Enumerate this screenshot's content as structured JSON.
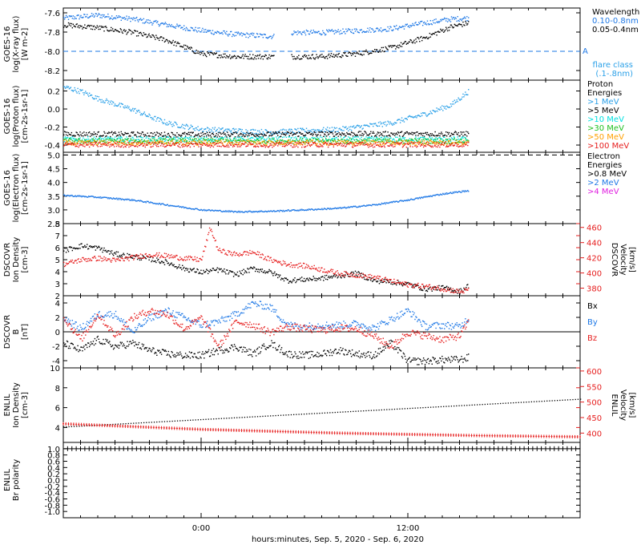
{
  "xaxis": {
    "tick_labels": [
      "0:00",
      "12:00"
    ],
    "caption": "hours:minutes, Sep.  5, 2020 - Sep.  6, 2020"
  },
  "colors": {
    "black": "#000000",
    "blue": "#1e78e6",
    "light_blue": "#2aa0e8",
    "cyan": "#00e0e0",
    "green": "#20c020",
    "orange": "#ffa000",
    "red": "#e61e1e",
    "magenta": "#e020e0"
  },
  "chart_data": [
    {
      "id": "xray",
      "type": "scatter",
      "ylabel": [
        "GOES-16",
        "log(X-ray flux)",
        "[W m-2]"
      ],
      "ylim": [
        -8.3,
        -7.55
      ],
      "yticks": [
        -8.2,
        -8.0,
        -7.8,
        -7.6
      ],
      "ytick_labels": [
        "-8.2",
        "-8.0",
        "-7.8",
        "-7.6"
      ],
      "reference_line": {
        "y": -8.0,
        "label": "A",
        "style": "dashed",
        "color": "blue"
      },
      "gap": [
        4.2,
        5.2
      ],
      "legend": {
        "title": "Wavelength",
        "items": [
          {
            "label": "0.10-0.8nm",
            "color": "blue"
          },
          {
            "label": "0.05-0.4nm",
            "color": "black"
          }
        ],
        "note": [
          "flare class",
          "(.1-.8nm)"
        ]
      },
      "series": [
        {
          "name": "0.10-0.8nm",
          "color": "blue",
          "x": [
            -8,
            -6,
            -4,
            -2,
            0,
            2,
            4.2,
            5.2,
            7,
            9,
            11,
            13,
            14.5,
            15.5
          ],
          "y": [
            -7.65,
            -7.62,
            -7.66,
            -7.72,
            -7.78,
            -7.82,
            -7.84,
            -7.8,
            -7.8,
            -7.78,
            -7.76,
            -7.7,
            -7.66,
            -7.65
          ]
        },
        {
          "name": "0.05-0.4nm",
          "color": "black",
          "x": [
            -8,
            -6,
            -4,
            -2,
            0,
            2,
            4.2,
            5.2,
            7,
            9,
            11,
            13,
            14.5,
            15.5
          ],
          "y": [
            -7.72,
            -7.75,
            -7.8,
            -7.88,
            -8.02,
            -8.05,
            -8.05,
            -8.05,
            -8.05,
            -8.02,
            -7.96,
            -7.85,
            -7.74,
            -7.7
          ]
        }
      ]
    },
    {
      "id": "proton",
      "type": "scatter",
      "ylabel": [
        "GOES-16",
        "log(Proton flux)",
        "[cm-2s-1sr-1]"
      ],
      "ylim": [
        -0.48,
        0.32
      ],
      "yticks": [
        -0.4,
        -0.2,
        0.0,
        0.2
      ],
      "ytick_labels": [
        "-0.4",
        "-0.2",
        "0.0",
        "0.2"
      ],
      "legend": {
        "title": [
          "Proton",
          "Energies"
        ],
        "items": [
          {
            "label": ">1 MeV",
            "color": "light_blue"
          },
          {
            "label": ">5 MeV",
            "color": "black"
          },
          {
            "label": ">10 MeV",
            "color": "cyan"
          },
          {
            "label": ">30 MeV",
            "color": "green"
          },
          {
            "label": ">50 MeV",
            "color": "orange"
          },
          {
            "label": ">100 MeV",
            "color": "red"
          }
        ]
      },
      "series": [
        {
          "name": ">1 MeV",
          "color": "light_blue",
          "x": [
            -8,
            -7,
            -6,
            -5,
            -4,
            -3,
            -2,
            0,
            4,
            8,
            11,
            13,
            14.5,
            15.5
          ],
          "y": [
            0.25,
            0.2,
            0.12,
            0.06,
            0.0,
            -0.08,
            -0.15,
            -0.22,
            -0.25,
            -0.22,
            -0.15,
            -0.05,
            0.05,
            0.2
          ]
        },
        {
          "name": ">5 MeV",
          "color": "black",
          "x": [
            -8,
            0,
            8,
            15.5
          ],
          "y": [
            -0.27,
            -0.28,
            -0.27,
            -0.27
          ]
        },
        {
          "name": ">10 MeV",
          "color": "cyan",
          "x": [
            -8,
            0,
            8,
            15.5
          ],
          "y": [
            -0.33,
            -0.33,
            -0.33,
            -0.33
          ]
        },
        {
          "name": ">30 MeV",
          "color": "green",
          "x": [
            -8,
            0,
            8,
            15.5
          ],
          "y": [
            -0.35,
            -0.35,
            -0.35,
            -0.35
          ]
        },
        {
          "name": ">50 MeV",
          "color": "orange",
          "x": [
            -8,
            0,
            8,
            15.5
          ],
          "y": [
            -0.37,
            -0.37,
            -0.37,
            -0.37
          ]
        },
        {
          "name": ">100 MeV",
          "color": "red",
          "x": [
            -8,
            0,
            8,
            15.5
          ],
          "y": [
            -0.39,
            -0.39,
            -0.39,
            -0.39
          ]
        }
      ]
    },
    {
      "id": "electron",
      "type": "scatter",
      "ylabel": [
        "GOES-16",
        "log(Electron flux)",
        "[cm-2s-1sr-1]"
      ],
      "ylim": [
        2.5,
        5.1
      ],
      "yticks": [
        2.5,
        3.0,
        3.5,
        4.0,
        4.5,
        5.0
      ],
      "ytick_labels": [
        "2.5",
        "3.0",
        "3.5",
        "4.0",
        "4.5",
        "5.0"
      ],
      "reference_line": {
        "y": 5.0,
        "style": "dashed",
        "color": "black"
      },
      "legend": {
        "title": [
          "Electron",
          "Energies"
        ],
        "items": [
          {
            "label": ">0.8 MeV",
            "color": "black"
          },
          {
            "label": ">2 MeV",
            "color": "blue"
          },
          {
            "label": ">4 MeV",
            "color": "magenta"
          }
        ]
      },
      "series": [
        {
          "name": ">2 MeV",
          "color": "blue",
          "x": [
            -8,
            -6,
            -4,
            -2,
            0,
            2,
            4,
            6,
            8,
            10,
            12,
            14,
            15.5
          ],
          "y": [
            3.55,
            3.48,
            3.38,
            3.2,
            3.02,
            2.95,
            2.97,
            3.02,
            3.08,
            3.2,
            3.38,
            3.6,
            3.72
          ]
        }
      ]
    },
    {
      "id": "dscovr_density",
      "type": "scatter",
      "ylabel": [
        "DSCOVR",
        "Ion Density",
        "[cm-3]"
      ],
      "ylim": [
        2,
        8
      ],
      "yticks": [
        2,
        3,
        4,
        5,
        6,
        7,
        8
      ],
      "ytick_labels": [
        "2",
        "3",
        "4",
        "5",
        "6",
        "7",
        "8"
      ],
      "right_axis": {
        "label": [
          "DSCOVR",
          "Velocity",
          "[km/s]"
        ],
        "ylim": [
          370,
          465
        ],
        "yticks": [
          380,
          400,
          420,
          440,
          460
        ],
        "ytick_labels": [
          "380",
          "400",
          "420",
          "440",
          "460"
        ],
        "color": "red"
      },
      "series": [
        {
          "name": "Ion Density",
          "color": "black",
          "axis": "left",
          "x": [
            -8,
            -7,
            -6,
            -5,
            -4,
            -3,
            -2,
            -1,
            0,
            1,
            2,
            3,
            4,
            5,
            6,
            7,
            8,
            9,
            10,
            11,
            12,
            13,
            14,
            15,
            15.5
          ],
          "y": [
            5.8,
            6.2,
            6.0,
            5.5,
            5.3,
            5.1,
            4.8,
            4.3,
            4.0,
            4.2,
            3.8,
            4.3,
            4.0,
            3.3,
            3.4,
            3.5,
            3.7,
            3.9,
            3.3,
            3.2,
            3.0,
            2.6,
            2.7,
            2.4,
            2.9
          ]
        },
        {
          "name": "Velocity",
          "color": "red",
          "axis": "right",
          "x": [
            -8,
            -7,
            -6,
            -5,
            -4,
            -3,
            -2,
            -1,
            0,
            0.5,
            1,
            2,
            3,
            4,
            5,
            6,
            7,
            8,
            9,
            10,
            11,
            12,
            13,
            14,
            15,
            15.5
          ],
          "y": [
            412,
            418,
            420,
            417,
            421,
            425,
            423,
            420,
            418,
            460,
            430,
            425,
            428,
            418,
            412,
            410,
            405,
            400,
            398,
            395,
            390,
            385,
            383,
            380,
            376,
            378
          ]
        }
      ]
    },
    {
      "id": "dscovr_b",
      "type": "scatter",
      "ylabel": [
        "DSCOVR",
        "B",
        "[nT]"
      ],
      "ylim": [
        -5,
        5
      ],
      "yticks": [
        -4,
        -2,
        0,
        2,
        4
      ],
      "ytick_labels": [
        "-4",
        "-2",
        "0",
        "2",
        "4"
      ],
      "reference_line": {
        "y": 0,
        "style": "solid",
        "color": "black"
      },
      "legend": {
        "items": [
          {
            "label": "Bx",
            "color": "black"
          },
          {
            "label": "By",
            "color": "blue"
          },
          {
            "label": "Bz",
            "color": "red"
          }
        ]
      },
      "series": [
        {
          "name": "Bx",
          "color": "black",
          "x": [
            -8,
            -7,
            -6,
            -5,
            -4,
            -3,
            -2,
            -1,
            0,
            1,
            2,
            3,
            4,
            5,
            6,
            7,
            8,
            9,
            10,
            11,
            12,
            13,
            14,
            15,
            15.5
          ],
          "y": [
            -1.5,
            -2.5,
            -1.0,
            -2.0,
            -1.5,
            -2.5,
            -3.0,
            -3.2,
            -3.2,
            -2.5,
            -2.0,
            -3.0,
            -1.5,
            -3.0,
            -3.2,
            -3.0,
            -2.5,
            -3.0,
            -3.2,
            -1.5,
            -4.0,
            -4.0,
            -3.8,
            -3.8,
            -3.5
          ]
        },
        {
          "name": "By",
          "color": "blue",
          "x": [
            -8,
            -7,
            -6,
            -5,
            -4,
            -3,
            -2,
            -1,
            0,
            1,
            2,
            3,
            4,
            5,
            6,
            7,
            8,
            9,
            10,
            11,
            12,
            13,
            14,
            15,
            15.5
          ],
          "y": [
            2.0,
            0.5,
            2.5,
            2.5,
            0.0,
            2.0,
            3.0,
            2.0,
            1.0,
            1.5,
            2.5,
            4.0,
            3.5,
            1.0,
            0.8,
            1.0,
            1.0,
            1.2,
            0.6,
            1.8,
            3.0,
            0.8,
            1.0,
            0.8,
            2.0
          ]
        },
        {
          "name": "Bz",
          "color": "red",
          "x": [
            -8,
            -7,
            -6,
            -5,
            -4,
            -3,
            -2,
            -1,
            0,
            1,
            2,
            3,
            4,
            5,
            6,
            7,
            8,
            9,
            10,
            11,
            12,
            13,
            14,
            15,
            15.5
          ],
          "y": [
            2.0,
            -1.0,
            2.5,
            -0.5,
            2.0,
            3.0,
            2.5,
            0.5,
            2.0,
            -2.0,
            1.5,
            1.0,
            0.0,
            0.8,
            0.5,
            0.3,
            0.6,
            0.5,
            -0.5,
            -2.0,
            0.0,
            -0.5,
            -1.0,
            -0.5,
            1.5
          ]
        }
      ]
    },
    {
      "id": "enlil_density",
      "type": "line",
      "ylabel": [
        "ENLIL",
        "Ion Density",
        "[cm-3]"
      ],
      "ylim": [
        2.5,
        10
      ],
      "yticks": [
        4,
        6,
        8,
        10
      ],
      "ytick_labels": [
        "4",
        "6",
        "8",
        "10"
      ],
      "right_axis": {
        "label": [
          "ENLIL",
          "Velocity",
          "[km/s]"
        ],
        "ylim": [
          370,
          610
        ],
        "yticks": [
          400,
          450,
          500,
          550,
          600
        ],
        "ytick_labels": [
          "400",
          "450",
          "500",
          "550",
          "600"
        ],
        "color": "red"
      },
      "series": [
        {
          "name": "Ion Density",
          "color": "black",
          "axis": "left",
          "x": [
            -8,
            22
          ],
          "y": [
            4.1,
            6.9
          ]
        },
        {
          "name": "Velocity",
          "color": "red",
          "axis": "right",
          "x": [
            -8,
            0,
            8,
            16,
            22
          ],
          "y": [
            430,
            412,
            400,
            392,
            388
          ]
        }
      ]
    },
    {
      "id": "enlil_polarity",
      "type": "line",
      "ylabel": [
        "ENLIL",
        "Br polarity"
      ],
      "ylim": [
        -1.2,
        1.2
      ],
      "yticks": [
        -1.0,
        -0.8,
        -0.6,
        -0.4,
        -0.2,
        0.0,
        0.2,
        0.4,
        0.6,
        0.8,
        1.0
      ],
      "ytick_labels": [
        "-1.0",
        "-0.8",
        "-0.6",
        "-0.4",
        "-0.2",
        "0.0",
        "0.2",
        "0.4",
        "0.6",
        "0.8",
        "1.0"
      ],
      "series": [
        {
          "name": "Br polarity",
          "color": "black",
          "x": [
            -8,
            22
          ],
          "y": [
            1.0,
            1.0
          ]
        }
      ]
    }
  ]
}
